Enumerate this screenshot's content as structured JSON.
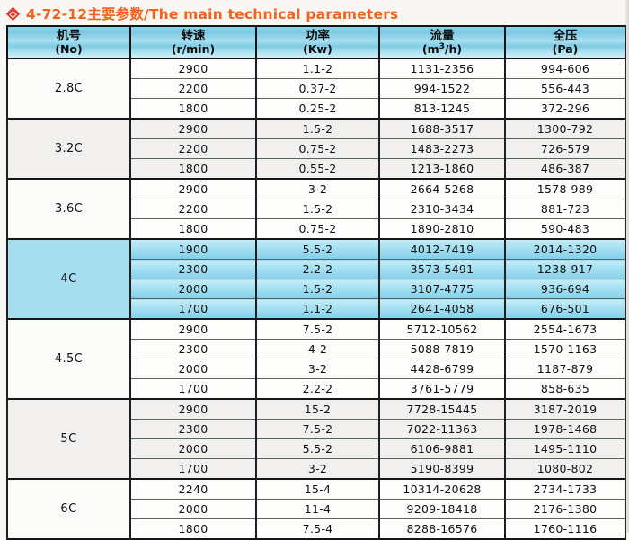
{
  "title": {
    "text": "4-72-12主要参数/The main technical parameters",
    "icon": "diamond-icon"
  },
  "colors": {
    "title_orange": "#f4611c",
    "diamond_red": "#e23a2b",
    "header_blue_mid": "#7cc8e2",
    "header_blue_light": "#cdeff9",
    "highlight_cyan": "#8ad2ec",
    "border_dark": "#141414",
    "row_separator": "#56645b"
  },
  "table": {
    "columns": [
      {
        "key": "no",
        "name": "机号",
        "unit": "(No)"
      },
      {
        "key": "speed",
        "name": "转速",
        "unit": "(r/min)"
      },
      {
        "key": "power",
        "name": "功率",
        "unit": "(Kw)"
      },
      {
        "key": "flow",
        "name": "流量",
        "unit_pre": "(m",
        "unit_sup": "3",
        "unit_post": "/h)"
      },
      {
        "key": "pressure",
        "name": "全压",
        "unit": "(Pa)"
      }
    ],
    "groups": [
      {
        "model": "2.8C",
        "highlight": false,
        "rows": [
          [
            "2900",
            "1.1-2",
            "1131-2356",
            "994-606"
          ],
          [
            "2200",
            "0.37-2",
            "994-1522",
            "556-443"
          ],
          [
            "1800",
            "0.25-2",
            "813-1245",
            "372-296"
          ]
        ]
      },
      {
        "model": "3.2C",
        "highlight": false,
        "rows": [
          [
            "2900",
            "1.5-2",
            "1688-3517",
            "1300-792"
          ],
          [
            "2200",
            "0.75-2",
            "1483-2273",
            "726-579"
          ],
          [
            "1800",
            "0.55-2",
            "1213-1860",
            "486-387"
          ]
        ]
      },
      {
        "model": "3.6C",
        "highlight": false,
        "rows": [
          [
            "2900",
            "3-2",
            "2664-5268",
            "1578-989"
          ],
          [
            "2200",
            "1.5-2",
            "2310-3434",
            "881-723"
          ],
          [
            "1800",
            "0.75-2",
            "1890-2810",
            "590-483"
          ]
        ]
      },
      {
        "model": "4C",
        "highlight": true,
        "rows": [
          [
            "1900",
            "5.5-2",
            "4012-7419",
            "2014-1320"
          ],
          [
            "2300",
            "2.2-2",
            "3573-5491",
            "1238-917"
          ],
          [
            "2000",
            "1.5-2",
            "3107-4775",
            "936-694"
          ],
          [
            "1700",
            "1.1-2",
            "2641-4058",
            "676-501"
          ]
        ]
      },
      {
        "model": "4.5C",
        "highlight": false,
        "rows": [
          [
            "2900",
            "7.5-2",
            "5712-10562",
            "2554-1673"
          ],
          [
            "2300",
            "4-2",
            "5088-7819",
            "1570-1163"
          ],
          [
            "2000",
            "3-2",
            "4428-6799",
            "1187-879"
          ],
          [
            "1700",
            "2.2-2",
            "3761-5779",
            "858-635"
          ]
        ]
      },
      {
        "model": "5C",
        "highlight": false,
        "rows": [
          [
            "2900",
            "15-2",
            "7728-15445",
            "3187-2019"
          ],
          [
            "2300",
            "7.5-2",
            "7022-11363",
            "1978-1468"
          ],
          [
            "2000",
            "5.5-2",
            "6106-9881",
            "1495-1110"
          ],
          [
            "1700",
            "3-2",
            "5190-8399",
            "1080-802"
          ]
        ]
      },
      {
        "model": "6C",
        "highlight": false,
        "rows": [
          [
            "2240",
            "15-4",
            "10314-20628",
            "2734-1733"
          ],
          [
            "2000",
            "11-4",
            "9209-18418",
            "2176-1380"
          ],
          [
            "1800",
            "7.5-4",
            "8288-16576",
            "1760-1116"
          ]
        ]
      }
    ]
  }
}
